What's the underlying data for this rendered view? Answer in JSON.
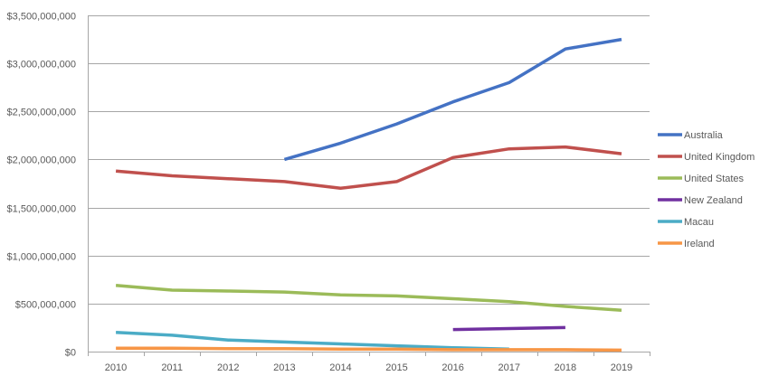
{
  "chart_data": {
    "type": "line",
    "title": "",
    "xlabel": "",
    "ylabel": "",
    "x": [
      "2010",
      "2011",
      "2012",
      "2013",
      "2014",
      "2015",
      "2016",
      "2017",
      "2018",
      "2019"
    ],
    "ylim": [
      0,
      3500000000
    ],
    "ytick_values": [
      0,
      500000000,
      1000000000,
      1500000000,
      2000000000,
      2500000000,
      3000000000,
      3500000000
    ],
    "ytick_labels": [
      "$0",
      "$500,000,000",
      "$1,000,000,000",
      "$1,500,000,000",
      "$2,000,000,000",
      "$2,500,000,000",
      "$3,000,000,000",
      "$3,500,000,000"
    ],
    "grid": "horizontal",
    "legend_position": "right",
    "series": [
      {
        "name": "Australia",
        "color": "#4472c4",
        "values": [
          null,
          null,
          null,
          2000000000,
          2170000000,
          2370000000,
          2600000000,
          2800000000,
          3150000000,
          3250000000
        ]
      },
      {
        "name": "United Kingdom",
        "color": "#c0504d",
        "values": [
          1880000000,
          1830000000,
          1800000000,
          1770000000,
          1700000000,
          1770000000,
          2020000000,
          2110000000,
          2130000000,
          2060000000
        ]
      },
      {
        "name": "United States",
        "color": "#9bbb59",
        "values": [
          690000000,
          640000000,
          630000000,
          620000000,
          590000000,
          580000000,
          550000000,
          520000000,
          470000000,
          430000000
        ]
      },
      {
        "name": "New Zealand",
        "color": "#7030a0",
        "values": [
          null,
          null,
          null,
          null,
          null,
          null,
          230000000,
          240000000,
          250000000,
          null
        ]
      },
      {
        "name": "Macau",
        "color": "#4bacc6",
        "values": [
          200000000,
          170000000,
          120000000,
          100000000,
          80000000,
          60000000,
          40000000,
          25000000,
          null,
          null
        ]
      },
      {
        "name": "Ireland",
        "color": "#f79646",
        "values": [
          35000000,
          35000000,
          30000000,
          30000000,
          25000000,
          25000000,
          20000000,
          20000000,
          20000000,
          15000000
        ]
      }
    ]
  }
}
